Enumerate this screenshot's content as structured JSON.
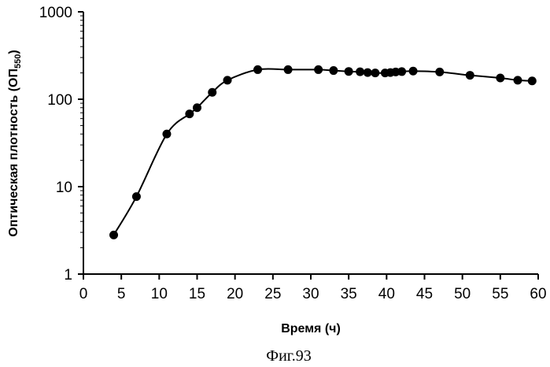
{
  "chart_data": {
    "type": "line",
    "title": "",
    "xlabel": "Время (ч)",
    "ylabel": "Оптическая плотность (ОП",
    "ylabel_subscript": "550",
    "ylabel_close": ")",
    "caption": "Фиг.93",
    "xlim": [
      0,
      60
    ],
    "ylim": [
      1,
      1000
    ],
    "yscale": "log",
    "grid": false,
    "legend": "none",
    "x_ticks": [
      "0",
      "5",
      "10",
      "15",
      "20",
      "25",
      "30",
      "35",
      "40",
      "45",
      "50",
      "55",
      "60"
    ],
    "y_ticks": [
      "1",
      "10",
      "100",
      "1000"
    ],
    "series": [
      {
        "x": [
          4,
          7,
          11,
          14,
          15,
          17,
          19,
          23,
          27,
          31,
          33,
          35,
          36.5,
          37.5,
          38.5,
          39.8,
          40.5,
          41.2,
          42,
          43.5,
          47,
          51,
          55,
          57.3,
          59.2
        ],
        "y": [
          2.8,
          7.7,
          40,
          68,
          80,
          120,
          165,
          218,
          218,
          218,
          213,
          208,
          206,
          202,
          200,
          200,
          202,
          205,
          207,
          210,
          205,
          188,
          175,
          165,
          162
        ]
      }
    ]
  }
}
